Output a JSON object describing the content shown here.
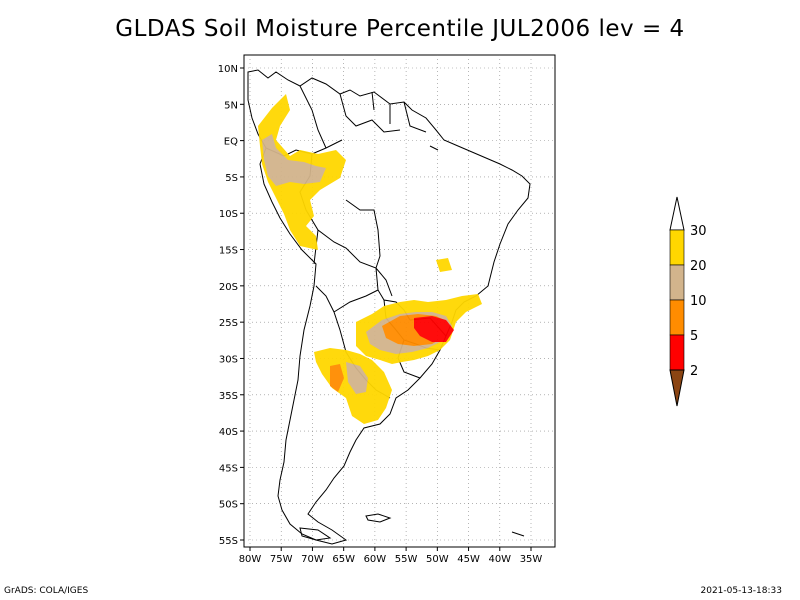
{
  "title": "GLDAS Soil Moisture Percentile JUL2006 lev = 4",
  "footer_left": "GrADS: COLA/IGES",
  "footer_right": "2021-05-13-18:33",
  "map": {
    "lat_ticks": [
      "10N",
      "5N",
      "EQ",
      "5S",
      "10S",
      "15S",
      "20S",
      "25S",
      "30S",
      "35S",
      "40S",
      "45S",
      "50S",
      "55S"
    ],
    "lon_ticks": [
      "80W",
      "75W",
      "70W",
      "65W",
      "60W",
      "55W",
      "50W",
      "45W",
      "40W",
      "35W"
    ],
    "grid": "dotted"
  },
  "legend": {
    "labels": [
      "30",
      "20",
      "10",
      "5",
      "2"
    ],
    "colors": [
      "#ffd700",
      "#d2b48c",
      "#ff8c00",
      "#ff0000",
      "#8b4513"
    ],
    "top_color": "#ffffff"
  }
}
